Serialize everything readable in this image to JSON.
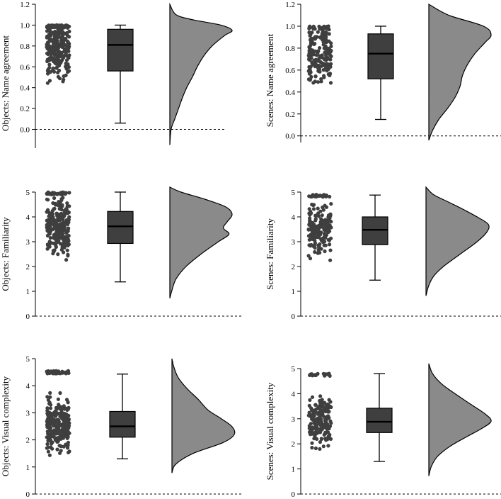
{
  "chart_data": [
    {
      "type": "raincloud",
      "ylabel": "Objects: Name agreement",
      "ylim": [
        -0.18,
        1.2
      ],
      "yticks": [
        0.0,
        0.2,
        0.4,
        0.6,
        0.8,
        1.0,
        1.2
      ],
      "tick_format": "1dp",
      "points": {
        "count": 300,
        "min": 0.06,
        "max": 1.0,
        "center": 0.82,
        "spread": 0.28,
        "seed": 11
      },
      "box": {
        "whisker_low": 0.06,
        "q1": 0.56,
        "median": 0.81,
        "q3": 0.96,
        "whisker_high": 1.0
      },
      "density": {
        "y": [
          -0.15,
          0.0,
          0.1,
          0.2,
          0.3,
          0.4,
          0.5,
          0.6,
          0.7,
          0.8,
          0.9,
          0.95,
          1.0,
          1.05,
          1.1,
          1.2
        ],
        "d": [
          0,
          0.02,
          0.08,
          0.14,
          0.2,
          0.27,
          0.36,
          0.44,
          0.54,
          0.68,
          0.88,
          1.0,
          0.82,
          0.38,
          0.1,
          0
        ]
      }
    },
    {
      "type": "raincloud",
      "ylabel": "Scenes: Name agreement",
      "ylim": [
        -0.06,
        1.2
      ],
      "yticks": [
        0.0,
        0.2,
        0.4,
        0.6,
        0.8,
        1.0,
        1.2
      ],
      "tick_format": "1dp",
      "points": {
        "count": 200,
        "min": 0.15,
        "max": 1.0,
        "center": 0.78,
        "spread": 0.27,
        "seed": 23
      },
      "box": {
        "whisker_low": 0.15,
        "q1": 0.52,
        "median": 0.75,
        "q3": 0.93,
        "whisker_high": 1.0
      },
      "density": {
        "y": [
          -0.04,
          0.05,
          0.15,
          0.25,
          0.35,
          0.45,
          0.55,
          0.65,
          0.75,
          0.85,
          0.92,
          1.0,
          1.1,
          1.2
        ],
        "d": [
          0,
          0.06,
          0.16,
          0.3,
          0.42,
          0.5,
          0.54,
          0.62,
          0.74,
          0.9,
          1.0,
          0.88,
          0.32,
          0
        ]
      }
    },
    {
      "type": "raincloud",
      "ylabel": "Objects: Familiarity",
      "ylim": [
        0,
        5
      ],
      "yticks": [
        0,
        1,
        2,
        3,
        4,
        5
      ],
      "tick_format": "0dp",
      "points": {
        "count": 300,
        "min": 1.4,
        "max": 5.0,
        "center": 3.6,
        "spread": 0.95,
        "seed": 37
      },
      "box": {
        "whisker_low": 1.38,
        "q1": 2.93,
        "median": 3.62,
        "q3": 4.22,
        "whisker_high": 5.0
      },
      "density": {
        "y": [
          0.72,
          1.0,
          1.5,
          2.0,
          2.5,
          3.0,
          3.3,
          3.55,
          3.8,
          4.1,
          4.4,
          4.7,
          5.0,
          5.2
        ],
        "d": [
          0,
          0.03,
          0.1,
          0.26,
          0.5,
          0.78,
          0.95,
          0.86,
          0.92,
          1.0,
          0.9,
          0.58,
          0.18,
          0
        ]
      }
    },
    {
      "type": "raincloud",
      "ylabel": "Scenes: Familiarity",
      "ylim": [
        0,
        5
      ],
      "yticks": [
        0,
        1,
        2,
        3,
        4,
        5
      ],
      "tick_format": "0dp",
      "points": {
        "count": 200,
        "min": 1.45,
        "max": 4.9,
        "center": 3.45,
        "spread": 0.85,
        "seed": 51
      },
      "box": {
        "whisker_low": 1.45,
        "q1": 2.88,
        "median": 3.48,
        "q3": 4.0,
        "whisker_high": 4.88
      },
      "density": {
        "y": [
          0.82,
          1.2,
          1.6,
          2.0,
          2.5,
          3.0,
          3.4,
          3.7,
          4.0,
          4.3,
          4.6,
          4.9,
          5.2
        ],
        "d": [
          0,
          0.04,
          0.12,
          0.28,
          0.55,
          0.82,
          0.98,
          1.0,
          0.82,
          0.6,
          0.36,
          0.12,
          0
        ]
      }
    },
    {
      "type": "raincloud",
      "ylabel": "Objects: Visual complexity",
      "ylim": [
        0,
        5
      ],
      "yticks": [
        0,
        1,
        2,
        3,
        4,
        5
      ],
      "tick_format": "0dp",
      "points": {
        "count": 300,
        "min": 1.3,
        "max": 4.55,
        "center": 2.55,
        "spread": 0.75,
        "seed": 67
      },
      "box": {
        "whisker_low": 1.3,
        "q1": 2.1,
        "median": 2.5,
        "q3": 3.05,
        "whisker_high": 4.43
      },
      "density": {
        "y": [
          0.78,
          1.1,
          1.5,
          1.9,
          2.2,
          2.5,
          2.8,
          3.1,
          3.5,
          3.9,
          4.3,
          4.7,
          5.0
        ],
        "d": [
          0,
          0.06,
          0.34,
          0.82,
          1.0,
          0.96,
          0.78,
          0.58,
          0.42,
          0.24,
          0.1,
          0.03,
          0
        ]
      }
    },
    {
      "type": "raincloud",
      "ylabel": "Scenes: Visual complexity",
      "ylim": [
        0,
        5
      ],
      "yticks": [
        0,
        1,
        2,
        3,
        4,
        5
      ],
      "tick_format": "0dp",
      "points": {
        "count": 200,
        "min": 1.3,
        "max": 4.8,
        "center": 2.95,
        "spread": 0.75,
        "seed": 83
      },
      "box": {
        "whisker_low": 1.3,
        "q1": 2.45,
        "median": 2.88,
        "q3": 3.42,
        "whisker_high": 4.8
      },
      "density": {
        "y": [
          0.72,
          1.1,
          1.5,
          1.9,
          2.3,
          2.6,
          2.9,
          3.2,
          3.6,
          4.0,
          4.4,
          4.8,
          5.2
        ],
        "d": [
          0,
          0.04,
          0.14,
          0.34,
          0.62,
          0.84,
          1.0,
          0.9,
          0.66,
          0.42,
          0.2,
          0.06,
          0
        ]
      }
    }
  ]
}
